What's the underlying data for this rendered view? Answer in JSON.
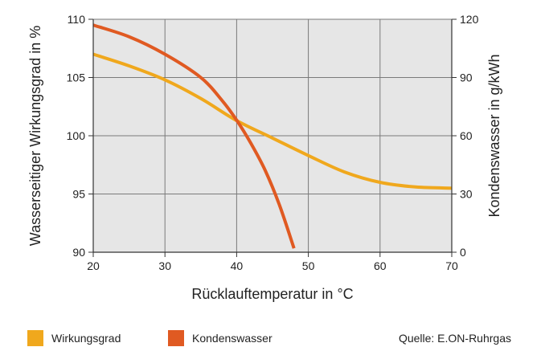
{
  "chart_data": {
    "type": "line",
    "xlabel": "Rücklauftemperatur in °C",
    "ylabel_left": "Wasserseitiger Wirkungsgrad in %",
    "ylabel_right": "Kondenswasser in g/kWh",
    "xlim": [
      20,
      70
    ],
    "ylim_left": [
      90,
      110
    ],
    "ylim_right": [
      0,
      120
    ],
    "x_ticks": [
      20,
      30,
      40,
      50,
      60,
      70
    ],
    "y_ticks_left": [
      90,
      95,
      100,
      105,
      110
    ],
    "y_ticks_right": [
      0,
      30,
      60,
      90,
      120
    ],
    "grid": true,
    "series": [
      {
        "name": "Wirkungsgrad",
        "axis": "left",
        "color": "#f0a81d",
        "x": [
          20,
          25,
          30,
          35,
          40,
          45,
          50,
          55,
          60,
          65,
          70
        ],
        "y": [
          107.0,
          106.0,
          104.8,
          103.2,
          101.3,
          99.8,
          98.3,
          96.9,
          96.0,
          95.6,
          95.5
        ]
      },
      {
        "name": "Kondenswasser",
        "axis": "right",
        "color": "#e05a22",
        "x": [
          20,
          25,
          30,
          35,
          38,
          40,
          42,
          44,
          46,
          48
        ],
        "y": [
          117,
          111,
          102,
          90,
          78,
          68,
          56,
          42,
          24,
          2
        ]
      }
    ],
    "legend": [
      {
        "label": "Wirkungsgrad",
        "color": "#f0a81d"
      },
      {
        "label": "Kondenswasser",
        "color": "#e05a22"
      }
    ],
    "legend_position": "bottom-left",
    "source": "Quelle: E.ON-Ruhrgas",
    "plot_background": "#e6e6e6"
  }
}
